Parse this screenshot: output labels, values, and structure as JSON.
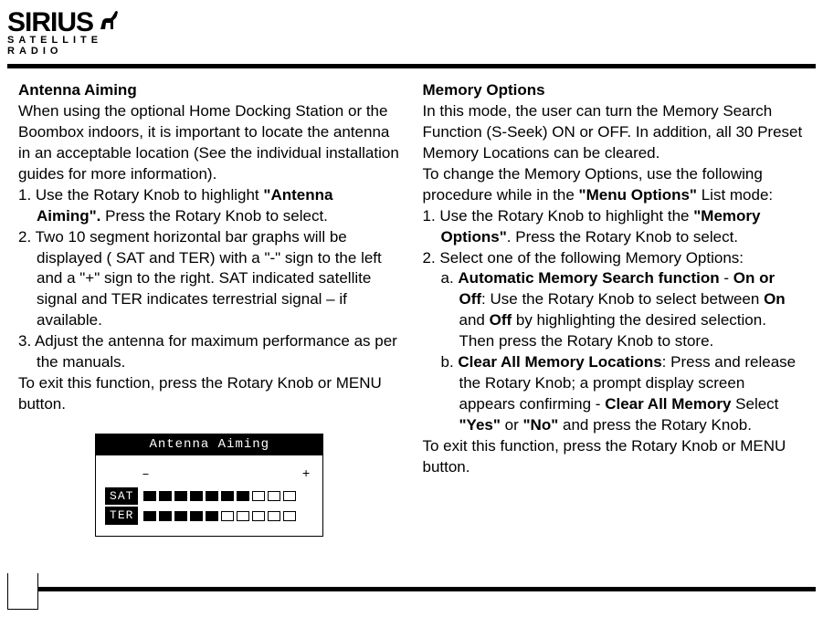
{
  "brand": {
    "name": "SIRIUS",
    "tagline": "SATELLITE RADIO"
  },
  "left": {
    "heading": "Antenna Aiming",
    "intro": "When using the optional Home Docking Station or the Boombox indoors, it is important to locate the antenna in an acceptable location (See the individual installation guides for more information).",
    "s1_a": "1. Use the Rotary Knob to highlight ",
    "s1_b": "\"Antenna Aiming\".",
    "s1_c": " Press the Rotary Knob to select.",
    "s2": "2. Two 10 segment horizontal bar graphs will be displayed ( SAT and TER) with a \"-\" sign to the left and a \"+\" sign to the right. SAT indicated satellite signal and TER indicates terrestrial signal – if available.",
    "s3": "3. Adjust the antenna for maximum performance as per the manuals.",
    "exit": "To exit this function, press the Rotary Knob or MENU button.",
    "lcd": {
      "title": "Antenna Aiming",
      "minus": "–",
      "plus": "+",
      "rows": [
        {
          "label": "SAT",
          "filled": 7,
          "total": 10
        },
        {
          "label": "TER",
          "filled": 5,
          "total": 10
        }
      ]
    }
  },
  "right": {
    "heading": "Memory Options",
    "intro1": "In this mode, the user can turn the Memory Search Function (S-Seek) ON or OFF. In addition, all 30 Preset Memory Locations can be cleared.",
    "intro2a": "To change the Memory Options, use the following procedure while in the ",
    "intro2b": "\"Menu Options\"",
    "intro2c": " List mode:",
    "s1_a": "1. Use the Rotary Knob to highlight the ",
    "s1_b": "\"Memory Options\"",
    "s1_c": ". Press the Rotary Knob to select.",
    "s2": "2. Select one of the following Memory Options:",
    "a_lead": "a.  ",
    "a_bold1": "Automatic Memory Search function",
    "a_mid1": " - ",
    "a_bold2": "On or Off",
    "a_mid2": ": Use the Rotary Knob to select between ",
    "a_bold3": "On",
    "a_mid3": " and ",
    "a_bold4": "Off",
    "a_tail": " by highlighting the desired selection. Then press the Rotary Knob to store.",
    "b_lead": "b.  ",
    "b_bold1": "Clear All Memory Locations",
    "b_mid1": ": Press and release the Rotary Knob; a prompt display screen appears confirming - ",
    "b_bold2": "Clear All Memory",
    "b_mid2": " Select ",
    "b_bold3": "\"Yes\"",
    "b_mid3": " or ",
    "b_bold4": "\"No\"",
    "b_tail": " and press the Rotary Knob.",
    "exit": "To exit this function, press the Rotary Knob or MENU button."
  }
}
